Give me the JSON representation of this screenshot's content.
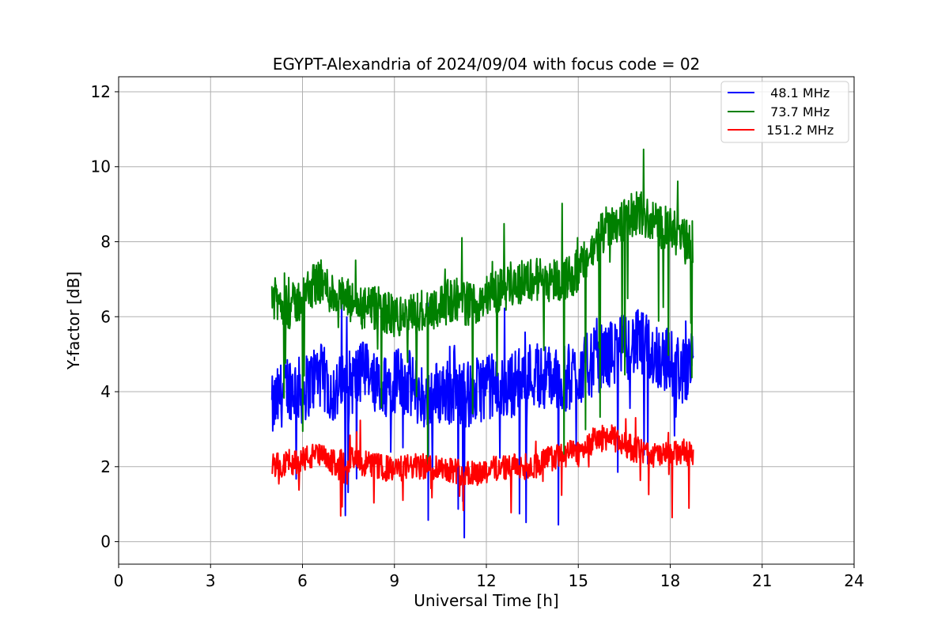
{
  "chart_data": {
    "type": "line",
    "title": "EGYPT-Alexandria of 2024/09/04 with focus code = 02",
    "xlabel": "Universal Time [h]",
    "ylabel": "Y-factor [dB]",
    "xlim": [
      0,
      24
    ],
    "ylim": [
      -0.6,
      12.4
    ],
    "xticks": [
      0,
      3,
      6,
      9,
      12,
      15,
      18,
      21,
      24
    ],
    "yticks": [
      0,
      2,
      4,
      6,
      8,
      10,
      12
    ],
    "grid": true,
    "legend_position": "top-right",
    "series": [
      {
        "name": "48.1 MHz",
        "legend_label": "  48.1 MHz",
        "color": "#0000ff",
        "x": [
          5.0,
          5.5,
          6.0,
          6.5,
          7.0,
          7.5,
          8.0,
          8.5,
          9.0,
          9.5,
          10.0,
          10.5,
          11.0,
          11.5,
          12.0,
          12.5,
          13.0,
          13.5,
          14.0,
          14.5,
          15.0,
          15.5,
          16.0,
          16.5,
          17.0,
          17.5,
          18.0,
          18.5,
          18.75
        ],
        "y": [
          3.5,
          4.2,
          4.0,
          4.5,
          4.0,
          4.2,
          4.5,
          4.0,
          4.3,
          4.2,
          3.8,
          4.0,
          4.0,
          3.9,
          4.2,
          4.0,
          4.3,
          4.5,
          4.4,
          4.3,
          4.5,
          4.8,
          5.0,
          5.2,
          5.3,
          5.0,
          4.8,
          4.5,
          5.5
        ]
      },
      {
        "name": "73.7 MHz",
        "legend_label": "  73.7 MHz",
        "color": "#008000",
        "x": [
          5.0,
          5.5,
          6.0,
          6.5,
          7.0,
          7.5,
          8.0,
          8.5,
          9.0,
          9.5,
          10.0,
          10.5,
          11.0,
          11.5,
          12.0,
          12.5,
          13.0,
          13.5,
          14.0,
          14.5,
          15.0,
          15.5,
          16.0,
          16.5,
          17.0,
          17.5,
          18.0,
          18.5,
          18.75
        ],
        "y": [
          6.5,
          6.2,
          6.5,
          7.0,
          6.6,
          6.4,
          6.2,
          6.2,
          6.0,
          6.0,
          6.2,
          6.3,
          6.5,
          6.3,
          6.6,
          6.7,
          6.9,
          7.0,
          7.0,
          7.0,
          7.2,
          7.8,
          8.5,
          8.6,
          8.8,
          8.5,
          8.3,
          8.0,
          8.0
        ]
      },
      {
        "name": "151.2 MHz",
        "legend_label": " 151.2 MHz",
        "color": "#ff0000",
        "x": [
          5.0,
          5.5,
          6.0,
          6.5,
          7.0,
          7.5,
          8.0,
          8.5,
          9.0,
          9.5,
          10.0,
          10.5,
          11.0,
          11.5,
          12.0,
          12.5,
          13.0,
          13.5,
          14.0,
          14.5,
          15.0,
          15.5,
          16.0,
          16.5,
          17.0,
          17.5,
          18.0,
          18.5,
          18.75
        ],
        "y": [
          2.0,
          2.1,
          2.2,
          2.3,
          2.1,
          2.2,
          2.1,
          2.0,
          1.9,
          2.0,
          2.0,
          2.0,
          1.9,
          1.8,
          1.9,
          2.0,
          2.0,
          2.0,
          2.2,
          2.3,
          2.4,
          2.7,
          2.8,
          2.6,
          2.4,
          2.3,
          2.3,
          2.4,
          2.3
        ]
      }
    ]
  }
}
